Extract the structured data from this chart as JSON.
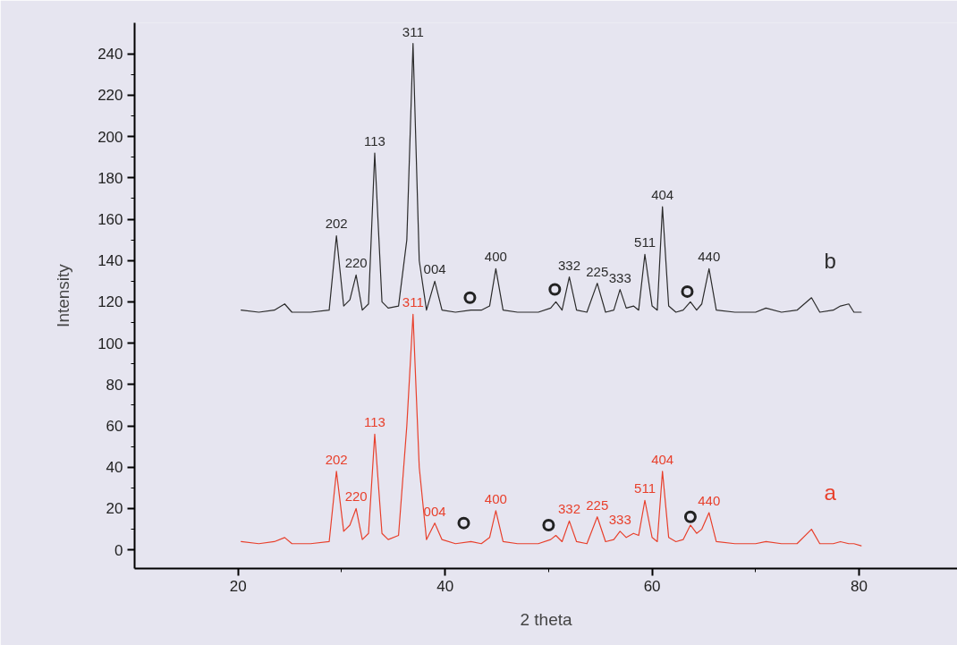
{
  "chart_data": {
    "type": "line",
    "xlabel": "2 theta",
    "ylabel": "Intensity",
    "xlim": [
      10,
      89.5
    ],
    "xticks": [
      20,
      40,
      60,
      80
    ],
    "ylim": [
      -9,
      255
    ],
    "yticks": [
      0,
      20,
      40,
      60,
      80,
      100,
      120,
      140,
      160,
      180,
      200,
      220,
      240
    ],
    "grid": false,
    "marker": "none",
    "line_style": "solid",
    "series": [
      {
        "name": "b",
        "color": "#2b2b2b",
        "x": [
          20.3,
          22,
          23.5,
          24.5,
          25.2,
          27,
          28.8,
          29.5,
          30.2,
          30.8,
          31.4,
          32.0,
          32.6,
          33.2,
          33.9,
          34.5,
          35.5,
          36.3,
          36.9,
          37.5,
          38.2,
          39.0,
          39.7,
          41,
          42.5,
          43.5,
          44.3,
          44.9,
          45.6,
          47,
          49,
          50.2,
          50.7,
          51.3,
          52.0,
          52.7,
          53.7,
          54.7,
          55.5,
          56.3,
          56.9,
          57.5,
          58.2,
          58.7,
          59.3,
          60,
          60.5,
          61.0,
          61.6,
          62.3,
          63.0,
          63.7,
          64.3,
          64.8,
          65.5,
          66.2,
          68,
          70,
          71,
          72.5,
          74,
          75.4,
          76.2,
          77.5,
          78.2,
          79,
          79.5,
          80.2
        ],
        "values": [
          116,
          115,
          116,
          119,
          115,
          115,
          116,
          152,
          118,
          121,
          133,
          116,
          119,
          192,
          120,
          117,
          118,
          150,
          245,
          140,
          116,
          130,
          116,
          115,
          116,
          116,
          118,
          136,
          116,
          115,
          115,
          117,
          120,
          116,
          132,
          116,
          115,
          129,
          115,
          116,
          126,
          117,
          118,
          116,
          143,
          118,
          116,
          166,
          118,
          115,
          116,
          120,
          116,
          119,
          136,
          116,
          115,
          115,
          117,
          115,
          116,
          122,
          115,
          116,
          118,
          119,
          115,
          115
        ]
      },
      {
        "name": "a",
        "color": "#e8402c",
        "x": [
          20.3,
          22,
          23.5,
          24.5,
          25.2,
          27,
          28.8,
          29.5,
          30.2,
          30.8,
          31.4,
          32.0,
          32.6,
          33.2,
          33.9,
          34.5,
          35.5,
          36.3,
          36.9,
          37.5,
          38.2,
          39.0,
          39.7,
          41,
          42.5,
          43.5,
          44.3,
          44.9,
          45.6,
          47,
          49,
          50.2,
          50.7,
          51.3,
          52.0,
          52.7,
          53.7,
          54.7,
          55.5,
          56.3,
          56.9,
          57.5,
          58.2,
          58.7,
          59.3,
          60,
          60.5,
          61.0,
          61.6,
          62.3,
          63.0,
          63.7,
          64.3,
          64.8,
          65.5,
          66.2,
          68,
          70,
          71,
          72.5,
          74,
          75.4,
          76.2,
          77.5,
          78.2,
          79,
          79.5,
          80.2
        ],
        "values": [
          4,
          3,
          4,
          6,
          3,
          3,
          4,
          38,
          9,
          12,
          20,
          5,
          8,
          56,
          8,
          5,
          7,
          60,
          114,
          40,
          5,
          13,
          5,
          3,
          4,
          3,
          6,
          19,
          4,
          3,
          3,
          5,
          7,
          4,
          14,
          4,
          3,
          16,
          4,
          5,
          9,
          6,
          8,
          7,
          24,
          6,
          4,
          38,
          6,
          4,
          5,
          12,
          8,
          10,
          18,
          4,
          3,
          3,
          4,
          3,
          3,
          10,
          3,
          3,
          4,
          3,
          3,
          2
        ]
      },
      {
        "type": "scatter",
        "marker": "circle",
        "color": "#222222",
        "x": [
          42.4,
          50.6,
          63.4,
          41.8,
          50.0,
          63.7
        ],
        "values": [
          122,
          126,
          125,
          13,
          12,
          16
        ]
      }
    ],
    "annotations": [
      {
        "text": "202",
        "x": 29.5,
        "y": 152
      },
      {
        "text": "220",
        "x": 31.4,
        "y": 133
      },
      {
        "text": "113",
        "x": 33.2,
        "y": 192
      },
      {
        "text": "311",
        "x": 36.9,
        "y": 245
      },
      {
        "text": "004",
        "x": 39.0,
        "y": 130
      },
      {
        "text": "400",
        "x": 44.9,
        "y": 136
      },
      {
        "text": "332",
        "x": 52.0,
        "y": 132
      },
      {
        "text": "225",
        "x": 54.7,
        "y": 129
      },
      {
        "text": "333",
        "x": 56.9,
        "y": 126
      },
      {
        "text": "511",
        "x": 59.3,
        "y": 143
      },
      {
        "text": "404",
        "x": 61.0,
        "y": 166
      },
      {
        "text": "440",
        "x": 65.5,
        "y": 136
      },
      {
        "text": "202",
        "x": 29.5,
        "y": 38
      },
      {
        "text": "220",
        "x": 31.4,
        "y": 20
      },
      {
        "text": "113",
        "x": 33.2,
        "y": 56
      },
      {
        "text": "311",
        "x": 36.9,
        "y": 114
      },
      {
        "text": "004",
        "x": 39.0,
        "y": 13
      },
      {
        "text": "400",
        "x": 44.9,
        "y": 19
      },
      {
        "text": "332",
        "x": 52.0,
        "y": 14
      },
      {
        "text": "225",
        "x": 54.7,
        "y": 16
      },
      {
        "text": "333",
        "x": 56.9,
        "y": 9
      },
      {
        "text": "511",
        "x": 59.3,
        "y": 24
      },
      {
        "text": "404",
        "x": 61.0,
        "y": 38
      },
      {
        "text": "440",
        "x": 65.5,
        "y": 18
      }
    ]
  }
}
